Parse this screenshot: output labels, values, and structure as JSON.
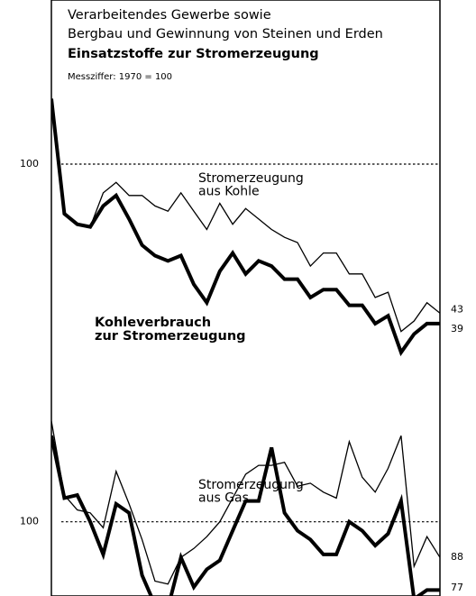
{
  "chart_data": [
    {
      "type": "line",
      "title": [
        "Verarbeitendes Gewerbe sowie",
        "Bergbau und Gewinnung von Steinen und Erden"
      ],
      "subtitle": "Einsatzstoffe zur Stromerzeugung",
      "note": "Messziffer: 1970 = 100",
      "categories": [
        null,
        null,
        null,
        null,
        null,
        null,
        null,
        null,
        null,
        null,
        null,
        null,
        null,
        null,
        null,
        null,
        null,
        null,
        null,
        null,
        null,
        null,
        null,
        null,
        null,
        null,
        null,
        null,
        null,
        null,
        null
      ],
      "ylim": [
        20,
        160
      ],
      "yticks": [
        100
      ],
      "grid": true,
      "series": [
        {
          "name": [
            "Stromerzeugung",
            "aus Kohle"
          ],
          "color": "#000000",
          "line_width": 1.3,
          "values": [
            null,
            null,
            null,
            76,
            89,
            93,
            88,
            88,
            84,
            82,
            89,
            82,
            75,
            85,
            77,
            83,
            79,
            75,
            72,
            70,
            61,
            66,
            66,
            58,
            58,
            49,
            51,
            36,
            40,
            47,
            43
          ]
        },
        {
          "name": [
            "Kohleverbrauch",
            "zur Stromerzeugung"
          ],
          "color": "#000000",
          "line_width": 4,
          "values": [
            125,
            81,
            77,
            76,
            84,
            88,
            79,
            69,
            65,
            63,
            65,
            54,
            47,
            59,
            66,
            58,
            63,
            61,
            56,
            56,
            49,
            52,
            52,
            46,
            46,
            39,
            42,
            28,
            35,
            39,
            39
          ]
        }
      ]
    },
    {
      "type": "line",
      "categories": [
        null,
        null,
        null,
        null,
        null,
        null,
        null,
        null,
        null,
        null,
        null,
        null,
        null,
        null,
        null,
        null,
        null,
        null,
        null,
        null,
        null,
        null,
        null,
        null,
        null,
        null,
        null,
        null,
        null,
        null,
        null
      ],
      "ylim": [
        75,
        140
      ],
      "yticks": [
        100
      ],
      "grid": true,
      "series": [
        {
          "name": [
            "Stromerzeugung",
            "aus Gas"
          ],
          "color": "#000000",
          "line_width": 1.3,
          "values": [
            134,
            109,
            104,
            103,
            98,
            117,
            106,
            94,
            80,
            79,
            88,
            91,
            95,
            100,
            108,
            116,
            119,
            119,
            120,
            112,
            113,
            110,
            108,
            127,
            115,
            110,
            118,
            129,
            85,
            95,
            88
          ]
        },
        {
          "color": "#000000",
          "line_width": 4,
          "values": [
            129,
            108,
            109,
            100,
            89,
            106,
            103,
            82,
            72,
            71,
            88,
            78,
            84,
            87,
            97,
            107,
            107,
            125,
            103,
            97,
            94,
            89,
            89,
            100,
            97,
            92,
            96,
            107,
            74,
            77,
            77
          ]
        }
      ]
    }
  ]
}
